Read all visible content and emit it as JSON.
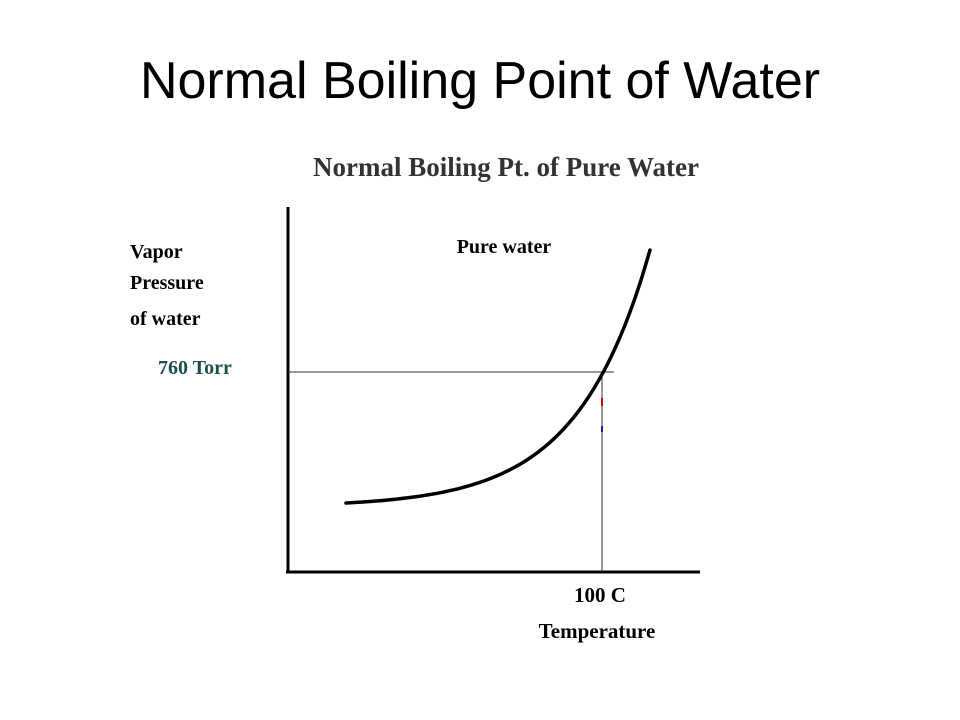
{
  "slide": {
    "title": "Normal Boiling Point of Water"
  },
  "chart_data": {
    "type": "line",
    "title": "Normal Boiling Pt. of Pure Water",
    "xlabel": "Temperature",
    "ylabel_lines": [
      "Vapor",
      "Pressure",
      "of water"
    ],
    "series": [
      {
        "name": "Pure water"
      }
    ],
    "reference_point": {
      "x_label": "100 C",
      "y_label": "760 Torr"
    },
    "grid": false,
    "colors": {
      "axis": "#000000",
      "curve": "#000000",
      "guide": "#333333",
      "y_reference_label": "#1f4e4e",
      "tick_red": "#cc0000",
      "tick_blue": "#1a1aa6"
    }
  }
}
